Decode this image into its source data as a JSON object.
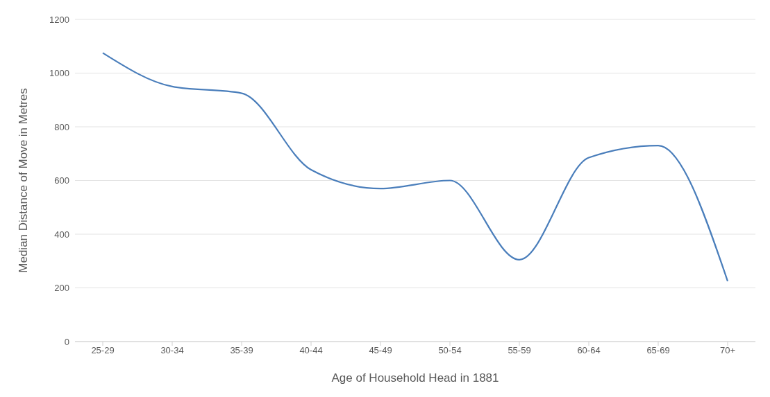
{
  "chart_data": {
    "type": "line",
    "xlabel": "Age of Household Head in 1881",
    "ylabel": "Median Distance of Move in Metres",
    "categories": [
      "25-29",
      "30-34",
      "35-39",
      "40-44",
      "45-49",
      "50-54",
      "55-59",
      "60-64",
      "65-69",
      "70+"
    ],
    "series": [
      {
        "color": "#4a7ebb",
        "values": [
          1075,
          950,
          925,
          640,
          570,
          600,
          305,
          685,
          730,
          225
        ]
      }
    ],
    "ylim": [
      0,
      1200
    ],
    "yticks": [
      0,
      200,
      400,
      600,
      800,
      1000,
      1200
    ],
    "grid": "y",
    "marker": "none",
    "line_style": "solid",
    "legend": false
  }
}
